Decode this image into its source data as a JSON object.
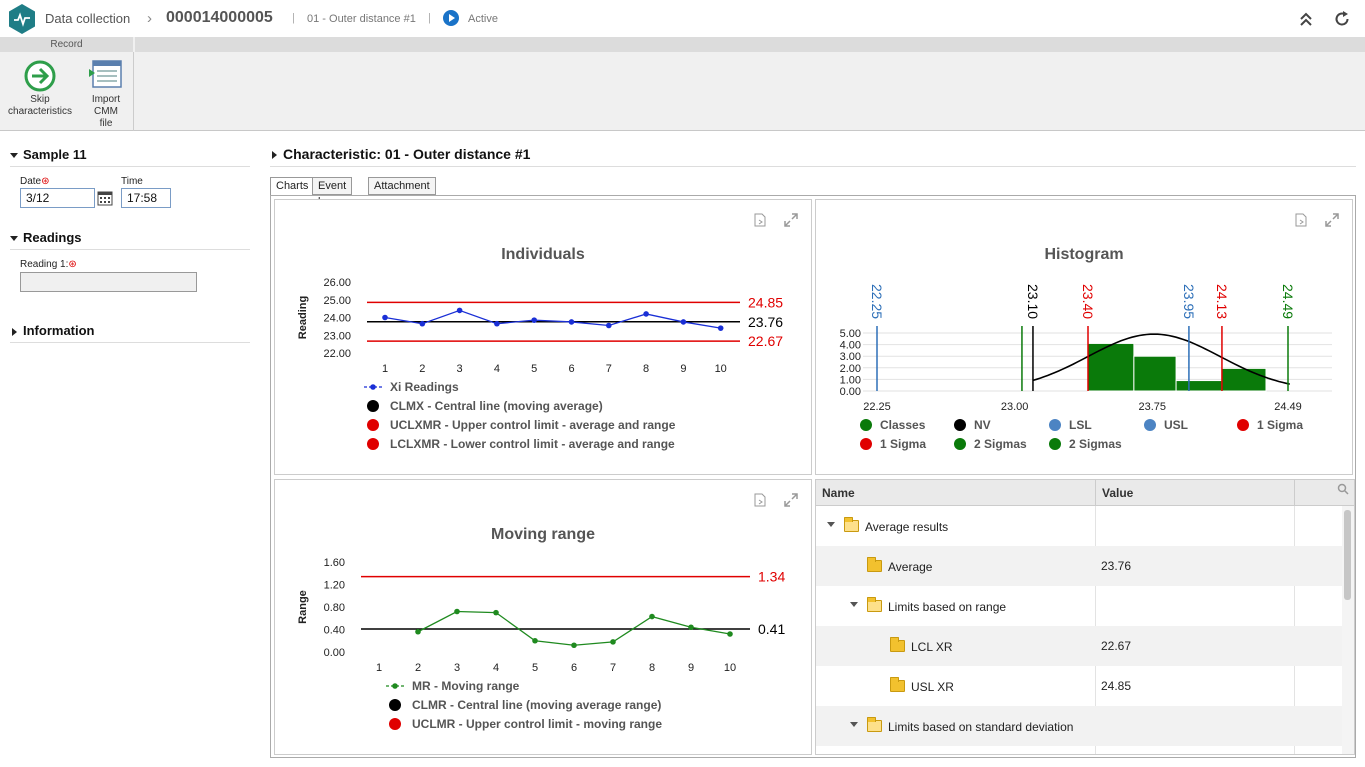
{
  "header": {
    "app_title": "Data collection",
    "record_id": "000014000005",
    "characteristic_name": "01 - Outer distance #1",
    "status": "Active"
  },
  "ribbon": {
    "group_label": "Record",
    "skip_label_1": "Skip",
    "skip_label_2": "characteristics",
    "import_label_1": "Import",
    "import_label_2": "CMM",
    "import_label_3": "file"
  },
  "sample": {
    "title": "Sample 11",
    "date_label": "Date",
    "date_value": "3/12",
    "time_label": "Time",
    "time_value": "17:58"
  },
  "readings": {
    "title": "Readings",
    "reading1_label": "Reading 1:",
    "reading1_value": ""
  },
  "information": {
    "title": "Information"
  },
  "characteristic": {
    "title": "Characteristic: 01 - Outer distance #1",
    "tabs": [
      "Charts",
      "Event log",
      "Attachment"
    ]
  },
  "chart_data": [
    {
      "type": "line",
      "title": "Individuals",
      "ylabel": "Reading",
      "x": [
        1,
        2,
        3,
        4,
        5,
        6,
        7,
        8,
        9,
        10
      ],
      "series": [
        {
          "name": "Xi Readings",
          "values": [
            24.0,
            23.65,
            24.4,
            23.65,
            23.85,
            23.75,
            23.55,
            24.2,
            23.75,
            23.4
          ],
          "color": "#1a2fd6"
        }
      ],
      "lines": [
        {
          "name": "UCLXMR",
          "value": 24.85,
          "label": "24.85",
          "color": "#e00000"
        },
        {
          "name": "CLMX",
          "value": 23.76,
          "label": "23.76",
          "color": "#000000"
        },
        {
          "name": "LCLXMR",
          "value": 22.67,
          "label": "22.67",
          "color": "#e00000"
        }
      ],
      "yticks": [
        "26.00",
        "25.00",
        "24.00",
        "23.00",
        "22.00"
      ],
      "ylim": [
        22.0,
        26.0
      ],
      "legend": [
        {
          "label": "Xi Readings",
          "color": "#1a2fd6",
          "style": "line"
        },
        {
          "label": "CLMX - Central line (moving average)",
          "color": "#000000",
          "style": "dot"
        },
        {
          "label": "UCLXMR - Upper control limit - average and range",
          "color": "#e00000",
          "style": "dot"
        },
        {
          "label": "LCLXMR - Lower control limit - average and range",
          "color": "#e00000",
          "style": "dot"
        }
      ]
    },
    {
      "type": "bar",
      "title": "Histogram",
      "yticks": [
        "5.00",
        "4.00",
        "3.00",
        "2.00",
        "1.00",
        "0.00"
      ],
      "ylim": [
        0,
        5
      ],
      "xticks": [
        "22.25",
        "23.00",
        "23.75",
        "24.49"
      ],
      "xlim": [
        22.25,
        24.49
      ],
      "bins": [
        {
          "from": 23.4,
          "to": 23.65,
          "count": 4.1
        },
        {
          "from": 23.65,
          "to": 23.88,
          "count": 3.0
        },
        {
          "from": 23.88,
          "to": 24.13,
          "count": 0.9
        },
        {
          "from": 24.13,
          "to": 24.37,
          "count": 1.95
        }
      ],
      "vlines": [
        {
          "value": 22.25,
          "label": "22.25",
          "color": "#2d6fb8"
        },
        {
          "value": 23.04,
          "label": "",
          "color": "#0a7a0a"
        },
        {
          "value": 23.1,
          "label": "23.10",
          "color": "#000000"
        },
        {
          "value": 23.4,
          "label": "23.40",
          "color": "#e00000"
        },
        {
          "value": 23.95,
          "label": "23.95",
          "color": "#2d6fb8"
        },
        {
          "value": 24.13,
          "label": "24.13",
          "color": "#e00000"
        },
        {
          "value": 24.49,
          "label": "24.49",
          "color": "#0a7a0a"
        }
      ],
      "legend": [
        {
          "label": "Classes",
          "color": "#0a7a0a"
        },
        {
          "label": "NV",
          "color": "#000000"
        },
        {
          "label": "LSL",
          "color": "#2d6fb8"
        },
        {
          "label": "USL",
          "color": "#2d6fb8"
        },
        {
          "label": "1 Sigma",
          "color": "#e00000"
        },
        {
          "label": "1 Sigma",
          "color": "#e00000"
        },
        {
          "label": "2 Sigmas",
          "color": "#0a7a0a"
        },
        {
          "label": "2 Sigmas",
          "color": "#0a7a0a"
        }
      ]
    },
    {
      "type": "line",
      "title": "Moving range",
      "ylabel": "Range",
      "x": [
        2,
        3,
        4,
        5,
        6,
        7,
        8,
        9,
        10
      ],
      "series": [
        {
          "name": "MR",
          "values": [
            0.36,
            0.72,
            0.7,
            0.2,
            0.12,
            0.18,
            0.63,
            0.44,
            0.32
          ],
          "color": "#1f8a1f"
        }
      ],
      "lines": [
        {
          "name": "UCLMR",
          "value": 1.34,
          "label": "1.34",
          "color": "#e00000"
        },
        {
          "name": "CLMR",
          "value": 0.41,
          "label": "0.41",
          "color": "#000000"
        }
      ],
      "xticks": [
        "1",
        "2",
        "3",
        "4",
        "5",
        "6",
        "7",
        "8",
        "9",
        "10"
      ],
      "yticks": [
        "1.60",
        "1.20",
        "0.80",
        "0.40",
        "0.00"
      ],
      "ylim": [
        0,
        1.6
      ],
      "legend": [
        {
          "label": "MR - Moving range",
          "color": "#1f8a1f",
          "style": "line"
        },
        {
          "label": "CLMR - Central line (moving average range)",
          "color": "#000000",
          "style": "dot"
        },
        {
          "label": "UCLMR - Upper control limit - moving range",
          "color": "#e00000",
          "style": "dot"
        }
      ]
    }
  ],
  "results_grid": {
    "col_name": "Name",
    "col_value": "Value",
    "rows": [
      {
        "label": "Average results",
        "value": "",
        "expanded": true
      },
      {
        "label": "Average",
        "value": "23.76"
      },
      {
        "label": "Limits based on range",
        "value": "",
        "expanded": true
      },
      {
        "label": "LCL XR",
        "value": "22.67"
      },
      {
        "label": "USL XR",
        "value": "24.85"
      },
      {
        "label": "Limits based on standard deviation",
        "value": "",
        "expanded": true
      }
    ]
  }
}
